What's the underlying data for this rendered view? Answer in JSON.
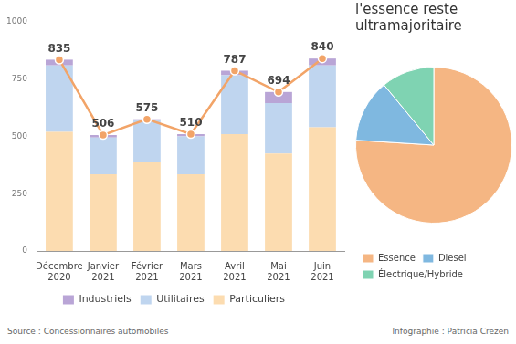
{
  "chart_data": [
    {
      "type": "bar",
      "stacked": true,
      "categories": [
        "Décembre 2020",
        "Janvier 2021",
        "Février 2021",
        "Mars 2021",
        "Avril 2021",
        "Mai 2021",
        "Juin 2021"
      ],
      "series": [
        {
          "name": "Particuliers",
          "color": "#fcdcb0",
          "values": [
            520,
            335,
            390,
            335,
            510,
            425,
            540
          ]
        },
        {
          "name": "Utilitaires",
          "color": "#bfd5ef",
          "values": [
            290,
            160,
            180,
            165,
            257,
            220,
            270
          ]
        },
        {
          "name": "Industriels",
          "color": "#b9a5d6",
          "values": [
            25,
            11,
            5,
            10,
            20,
            49,
            30
          ]
        },
        {
          "type": "line",
          "color": "#f2a468",
          "marker": "circle",
          "data_labels": true,
          "values": [
            835,
            506,
            575,
            510,
            787,
            694,
            840
          ]
        }
      ],
      "ylim": [
        0,
        1000
      ],
      "yticks": [
        0,
        250,
        500,
        750,
        1000
      ],
      "grid": false,
      "legend": "bottom"
    },
    {
      "type": "pie",
      "title": "l'essence reste ultramajoritaire",
      "categories": [
        "Essence",
        "Diesel",
        "Électrique/Hybride"
      ],
      "values": [
        76,
        13,
        11
      ],
      "colors": [
        "#f5b683",
        "#7fb8e0",
        "#7fd3b2"
      ],
      "legend": "bottom"
    }
  ],
  "source": "Source : Concessionnaires automobiles",
  "credit": "Infographie : Patricia Crezen"
}
